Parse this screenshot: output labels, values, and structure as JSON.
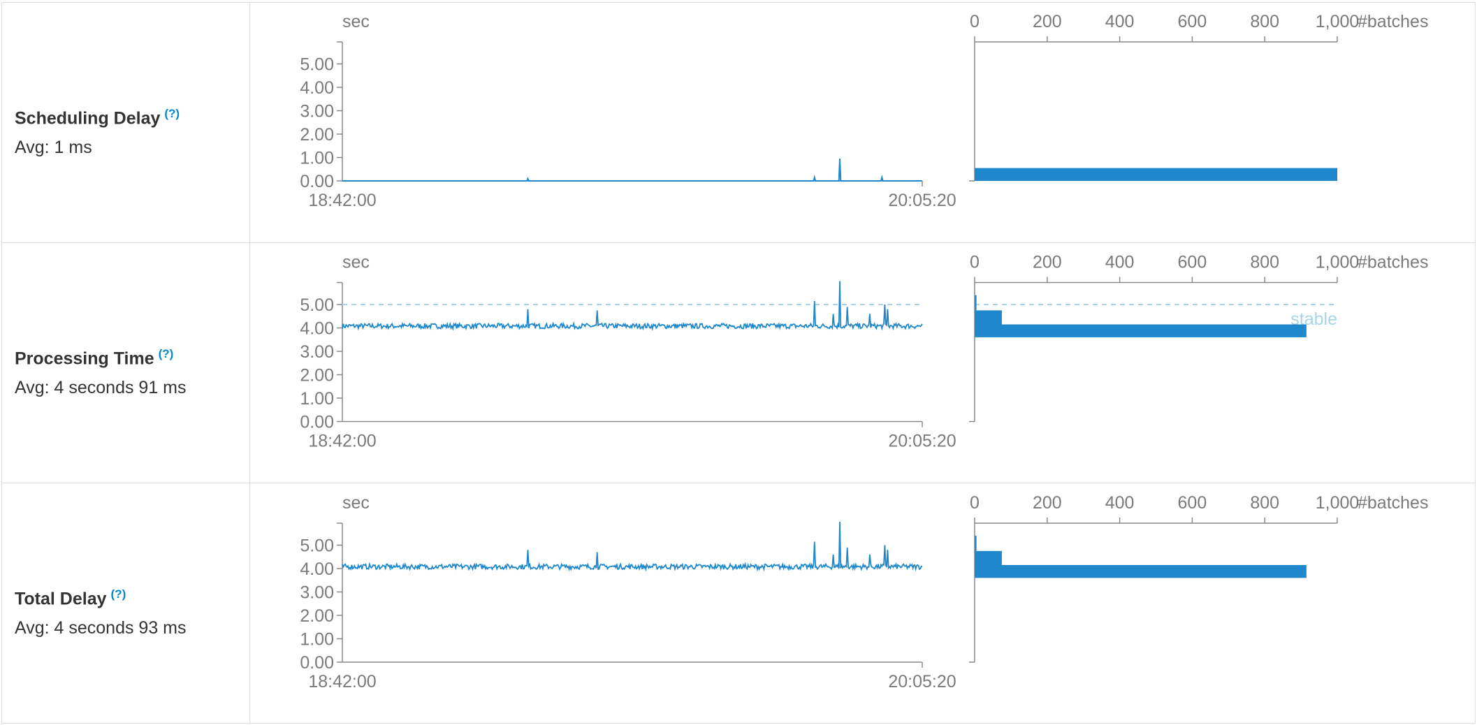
{
  "colors": {
    "accent": "#1f88cc",
    "axis": "#888888",
    "threshold": "#a9d4e8",
    "border": "#dddddd"
  },
  "metrics": [
    {
      "title": "Scheduling Delay",
      "help": "(?)",
      "avg": "Avg: 1 ms"
    },
    {
      "title": "Processing Time",
      "help": "(?)",
      "avg": "Avg: 4 seconds 91 ms"
    },
    {
      "title": "Total Delay",
      "help": "(?)",
      "avg": "Avg: 4 seconds 93 ms"
    }
  ],
  "chart_data": [
    {
      "type": "line",
      "name": "scheduling-delay-timeline",
      "ylabel": "sec",
      "ylim": [
        0,
        6
      ],
      "y_ticks": [
        "0.00",
        "1.00",
        "2.00",
        "3.00",
        "4.00",
        "5.00"
      ],
      "x_tick_labels": [
        "18:42:00",
        "20:05:20"
      ],
      "baseline": 0.0,
      "spikes": [
        [
          0.32,
          0.1
        ],
        [
          0.814,
          0.15
        ],
        [
          0.858,
          0.95
        ],
        [
          0.93,
          0.15
        ]
      ]
    },
    {
      "type": "bar",
      "name": "scheduling-delay-histogram",
      "xlabel": "#batches",
      "xlim": [
        0,
        1000
      ],
      "x_ticks": [
        "0",
        "200",
        "400",
        "600",
        "800",
        "1,000"
      ],
      "bins": [
        {
          "y0": 0.0,
          "y1": 0.55,
          "count": 1000
        }
      ]
    },
    {
      "type": "line",
      "name": "processing-time-timeline",
      "ylabel": "sec",
      "ylim": [
        0,
        6
      ],
      "y_ticks": [
        "0.00",
        "1.00",
        "2.00",
        "3.00",
        "4.00",
        "5.00"
      ],
      "x_tick_labels": [
        "18:42:00",
        "20:05:20"
      ],
      "baseline": 4.08,
      "threshold": 5.0,
      "spikes": [
        [
          0.32,
          4.8
        ],
        [
          0.44,
          4.75
        ],
        [
          0.814,
          5.15
        ],
        [
          0.846,
          4.6
        ],
        [
          0.858,
          6.0
        ],
        [
          0.87,
          4.9
        ],
        [
          0.91,
          4.6
        ],
        [
          0.935,
          5.0
        ],
        [
          0.94,
          4.8
        ]
      ]
    },
    {
      "type": "bar",
      "name": "processing-time-histogram",
      "xlabel": "#batches",
      "xlim": [
        0,
        1000
      ],
      "x_ticks": [
        "0",
        "200",
        "400",
        "600",
        "800",
        "1,000"
      ],
      "threshold": 5.0,
      "threshold_label": "stable",
      "bins": [
        {
          "y0": 4.75,
          "y1": 5.4,
          "count": 5
        },
        {
          "y0": 4.15,
          "y1": 4.75,
          "count": 75
        },
        {
          "y0": 3.6,
          "y1": 4.15,
          "count": 915
        }
      ]
    },
    {
      "type": "line",
      "name": "total-delay-timeline",
      "ylabel": "sec",
      "ylim": [
        0,
        6
      ],
      "y_ticks": [
        "0.00",
        "1.00",
        "2.00",
        "3.00",
        "4.00",
        "5.00"
      ],
      "x_tick_labels": [
        "18:42:00",
        "20:05:20"
      ],
      "baseline": 4.08,
      "spikes": [
        [
          0.32,
          4.8
        ],
        [
          0.44,
          4.7
        ],
        [
          0.814,
          5.15
        ],
        [
          0.846,
          4.6
        ],
        [
          0.858,
          6.0
        ],
        [
          0.87,
          4.9
        ],
        [
          0.91,
          4.6
        ],
        [
          0.935,
          5.0
        ],
        [
          0.94,
          4.8
        ]
      ]
    },
    {
      "type": "bar",
      "name": "total-delay-histogram",
      "xlabel": "#batches",
      "xlim": [
        0,
        1000
      ],
      "x_ticks": [
        "0",
        "200",
        "400",
        "600",
        "800",
        "1,000"
      ],
      "bins": [
        {
          "y0": 4.75,
          "y1": 5.4,
          "count": 5
        },
        {
          "y0": 4.15,
          "y1": 4.75,
          "count": 75
        },
        {
          "y0": 3.6,
          "y1": 4.15,
          "count": 915
        }
      ]
    }
  ]
}
